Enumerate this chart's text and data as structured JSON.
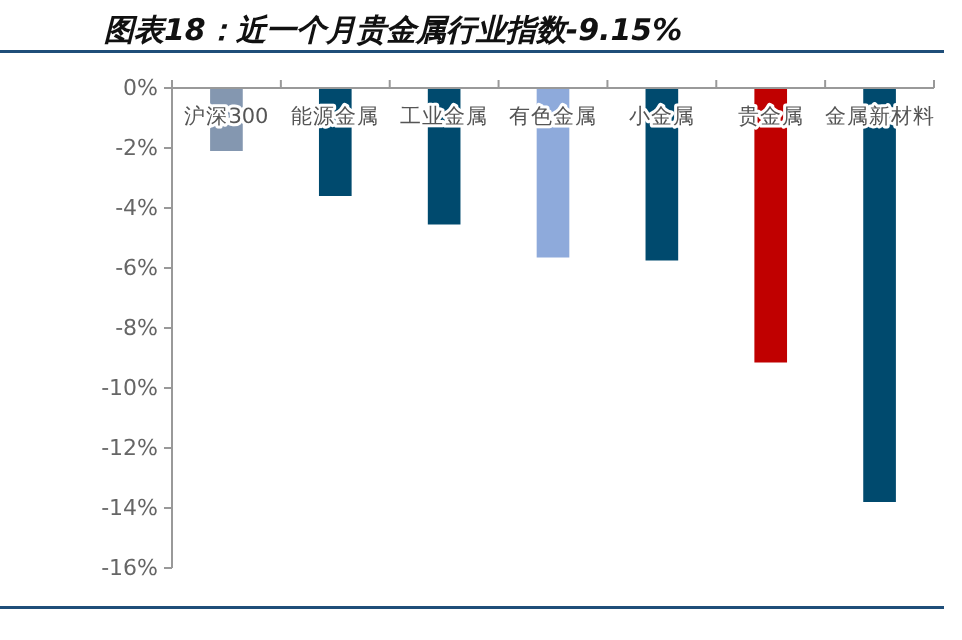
{
  "chart_data": {
    "type": "bar",
    "title": "图表18：近一个月贵金属行业指数-9.15%",
    "categories": [
      "沪深300",
      "能源金属",
      "工业金属",
      "有色金属",
      "小金属",
      "贵金属",
      "金属新材料"
    ],
    "values": [
      -2.1,
      -3.6,
      -4.55,
      -5.65,
      -5.75,
      -9.15,
      -13.8
    ],
    "colors": [
      "#8497b0",
      "#004a6e",
      "#004a6e",
      "#8eaadb",
      "#004a6e",
      "#c00000",
      "#004a6e"
    ],
    "ylim": [
      -16,
      0
    ],
    "yticks": [
      {
        "value": -16,
        "label": "-16%"
      },
      {
        "value": -14,
        "label": "-14%"
      },
      {
        "value": -12,
        "label": "-12%"
      },
      {
        "value": -10,
        "label": "-10%"
      },
      {
        "value": -8,
        "label": "-8%"
      },
      {
        "value": -6,
        "label": "-6%"
      },
      {
        "value": -4,
        "label": "-4%"
      },
      {
        "value": -2,
        "label": "-2%"
      },
      {
        "value": 0,
        "label": "0%"
      }
    ],
    "grid": false
  }
}
